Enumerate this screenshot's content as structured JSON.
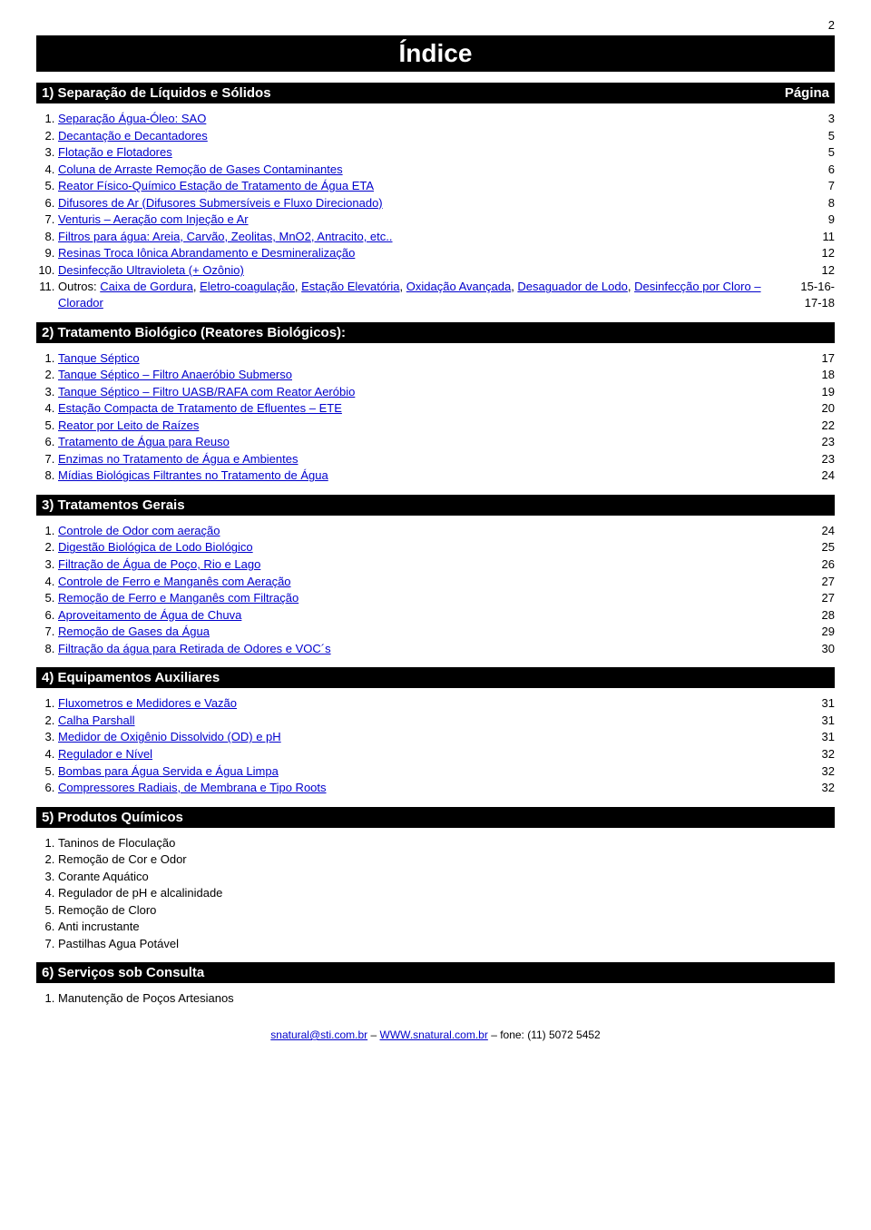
{
  "page_number": "2",
  "title": "Índice",
  "sections": [
    {
      "heading": "1) Separação de Líquidos e Sólidos",
      "right_label": "Página",
      "items": [
        {
          "label": "Separação Água-Óleo: SAO",
          "page": "3",
          "link": true
        },
        {
          "label": "Decantação e Decantadores",
          "page": "5",
          "link": true
        },
        {
          "label": "Flotação e Flotadores",
          "page": "5",
          "link": true
        },
        {
          "label": "Coluna de Arraste Remoção de Gases Contaminantes",
          "page": "6",
          "link": true
        },
        {
          "label": "Reator Físico-Químico Estação de Tratamento de Água ETA",
          "page": "7",
          "link": true
        },
        {
          "label": "Difusores de Ar (Difusores Submersíveis e Fluxo Direcionado)",
          "page": "8",
          "link": true
        },
        {
          "label": "Venturis – Aeração com Injeção e Ar",
          "page": "9",
          "link": true
        },
        {
          "label": "Filtros para água: Areia, Carvão, Zeolitas, MnO2, Antracito, etc..",
          "page": "11",
          "link": true
        },
        {
          "label": "Resinas Troca Iônica Abrandamento e Desmineralização",
          "page": "12",
          "link": true
        },
        {
          "label": "Desinfecção Ultravioleta (+ Ozônio)",
          "page": "12",
          "link": true
        },
        {
          "label_parts": [
            {
              "t": "Outros: ",
              "plain": true
            },
            {
              "t": "Caixa de Gordura",
              "plain": false
            },
            {
              "t": ", ",
              "plain": true
            },
            {
              "t": "Eletro-coagulação",
              "plain": false
            },
            {
              "t": ", ",
              "plain": true
            },
            {
              "t": "Estação Elevatória",
              "plain": false
            },
            {
              "t": ", ",
              "plain": true
            },
            {
              "t": "Oxidação Avançada",
              "plain": false
            },
            {
              "t": ", ",
              "plain": true
            },
            {
              "t": "Desaguador de Lodo",
              "plain": false
            },
            {
              "t": ", ",
              "plain": true
            },
            {
              "t": "Desinfecção por Cloro – Clorador",
              "plain": false
            }
          ],
          "page": "15-16-17-18",
          "link": true,
          "multiline_page": true
        }
      ]
    },
    {
      "heading": "2) Tratamento Biológico (Reatores Biológicos):",
      "items": [
        {
          "label": "Tanque Séptico",
          "page": "17",
          "link": true
        },
        {
          "label": "Tanque Séptico – Filtro Anaeróbio Submerso",
          "page": "18",
          "link": true
        },
        {
          "label": "Tanque Séptico – Filtro UASB/RAFA com Reator Aeróbio",
          "page": "19",
          "link": true
        },
        {
          "label": "Estação Compacta de Tratamento de Efluentes – ETE",
          "page": "20",
          "link": true
        },
        {
          "label": "Reator por Leito de Raízes",
          "page": "22",
          "link": true
        },
        {
          "label": "Tratamento de Água para Reuso",
          "page": "23",
          "link": true
        },
        {
          "label": "Enzimas no Tratamento de Água e Ambientes",
          "page": "23",
          "link": true
        },
        {
          "label": "Mídias Biológicas Filtrantes no Tratamento de Água",
          "page": "24",
          "link": true
        }
      ]
    },
    {
      "heading": "3) Tratamentos Gerais",
      "items": [
        {
          "label": "Controle de Odor com aeração",
          "page": "24",
          "link": true
        },
        {
          "label": "Digestão Biológica de Lodo Biológico",
          "page": "25",
          "link": true
        },
        {
          "label": "Filtração de Água de Poço, Rio e Lago",
          "page": "26",
          "link": true
        },
        {
          "label": "Controle de Ferro e Manganês com Aeração",
          "page": "27",
          "link": true
        },
        {
          "label": "Remoção de Ferro e Manganês com Filtração",
          "page": "27",
          "link": true
        },
        {
          "label": "Aproveitamento de Água de Chuva",
          "page": "28",
          "link": true
        },
        {
          "label": "Remoção de Gases da Água",
          "page": "29",
          "link": true
        },
        {
          "label": "Filtração da água para Retirada de Odores e VOC´s",
          "page": "30",
          "link": true
        }
      ]
    },
    {
      "heading": "4) Equipamentos Auxiliares",
      "items": [
        {
          "label": "Fluxometros e Medidores e Vazão",
          "page": "31",
          "link": true
        },
        {
          "label": "Calha Parshall",
          "page": "31",
          "link": true
        },
        {
          "label": "Medidor de Oxigênio Dissolvido (OD) e pH",
          "page": "31",
          "link": true
        },
        {
          "label": "Regulador e Nível",
          "page": "32",
          "link": true
        },
        {
          "label": "Bombas para Água Servida e Água Limpa",
          "page": "32",
          "link": true
        },
        {
          "label": "Compressores Radiais, de Membrana e Tipo Roots",
          "page": "32",
          "link": true
        }
      ]
    },
    {
      "heading": "5) Produtos Químicos",
      "items": [
        {
          "label": "Taninos de Floculação",
          "link": false
        },
        {
          "label": "Remoção de Cor e Odor",
          "link": false
        },
        {
          "label": "Corante Aquático",
          "link": false
        },
        {
          "label": "Regulador de pH e alcalinidade",
          "link": false
        },
        {
          "label": "Remoção de Cloro",
          "link": false
        },
        {
          "label": "Anti incrustante",
          "link": false
        },
        {
          "label": "Pastilhas Agua Potável",
          "link": false
        }
      ]
    },
    {
      "heading": "6) Serviços sob Consulta",
      "items": [
        {
          "label": "Manutenção de Poços Artesianos",
          "link": false
        }
      ]
    }
  ],
  "footer": {
    "email": "snatural@sti.com.br",
    "sep1": " – ",
    "url": "WWW.snatural.com.br",
    "sep2": " – fone: (11) 5072 5452"
  },
  "colors": {
    "link": "#0000cc",
    "bar_bg": "#000000",
    "bar_fg": "#ffffff",
    "text": "#000000",
    "body_bg": "#ffffff"
  },
  "typography": {
    "body_fontsize": 13,
    "title_fontsize": 28,
    "section_fontsize": 15,
    "footer_fontsize": 12,
    "font_family": "Verdana, Arial, sans-serif"
  }
}
